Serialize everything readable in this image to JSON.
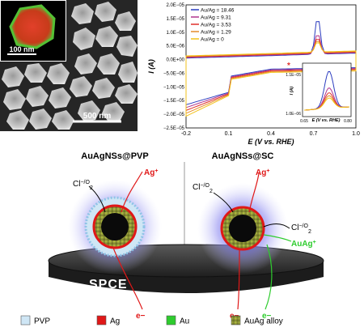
{
  "tem": {
    "inset_scale": "100 nm",
    "main_scale": "500 nm"
  },
  "chart_data": {
    "type": "line",
    "xlabel": "E (V vs. RHE)",
    "ylabel": "I (A)",
    "xlim": [
      -0.2,
      1.0
    ],
    "ylim": [
      -2.5e-05,
      2e-05
    ],
    "x_ticks": [
      "-0.2",
      "0.1",
      "0.4",
      "0.7",
      "1.0"
    ],
    "y_ticks": [
      "2.0E−05",
      "1.5E−05",
      "1.0E−05",
      "5.0E−06",
      "0.0E+00",
      "−5.0E−06",
      "−1.0E−05",
      "−1.5E−05",
      "−2.0E−05",
      "−2.5E−05"
    ],
    "legend_position": "top-left",
    "series": [
      {
        "name": "Au/Ag = 18.46",
        "color": "#2b3cbf"
      },
      {
        "name": "Au/Ag = 9.31",
        "color": "#b0358f"
      },
      {
        "name": "Au/Ag = 3.53",
        "color": "#e0302a"
      },
      {
        "name": "Au/Ag = 1.29",
        "color": "#e48a2a"
      },
      {
        "name": "Au/Ag = 0",
        "color": "#f2c21a"
      }
    ],
    "inset": {
      "xlabel": "E (V vs. RHE)",
      "ylabel": "I (A)",
      "x_ticks": [
        "0.65",
        "0.80"
      ],
      "y_ticks": [
        "1.1E−05",
        "1.0E−06"
      ]
    },
    "peak_marker": "*"
  },
  "scheme": {
    "left_title": "AuAgNSs@PVP",
    "right_title": "AuAgNSs@SC",
    "ag_ion": "Ag",
    "ag_sup": "+",
    "chloride_left": "Cl",
    "chloride_right_top": "Cl",
    "chloride_right": "Cl",
    "oxidant": "−/O",
    "oxidant_sub": "2",
    "auag_ion": "AuAg",
    "auag_sup": "+",
    "electron": "e−",
    "electrode": "SPCE"
  },
  "legend": [
    {
      "label": "PVP",
      "color": "#cfe6f5"
    },
    {
      "label": "Ag",
      "color": "#e01818"
    },
    {
      "label": "Au",
      "color": "#2ecc2e"
    },
    {
      "label": "AuAg alloy",
      "color": "#8a8a3a"
    }
  ]
}
